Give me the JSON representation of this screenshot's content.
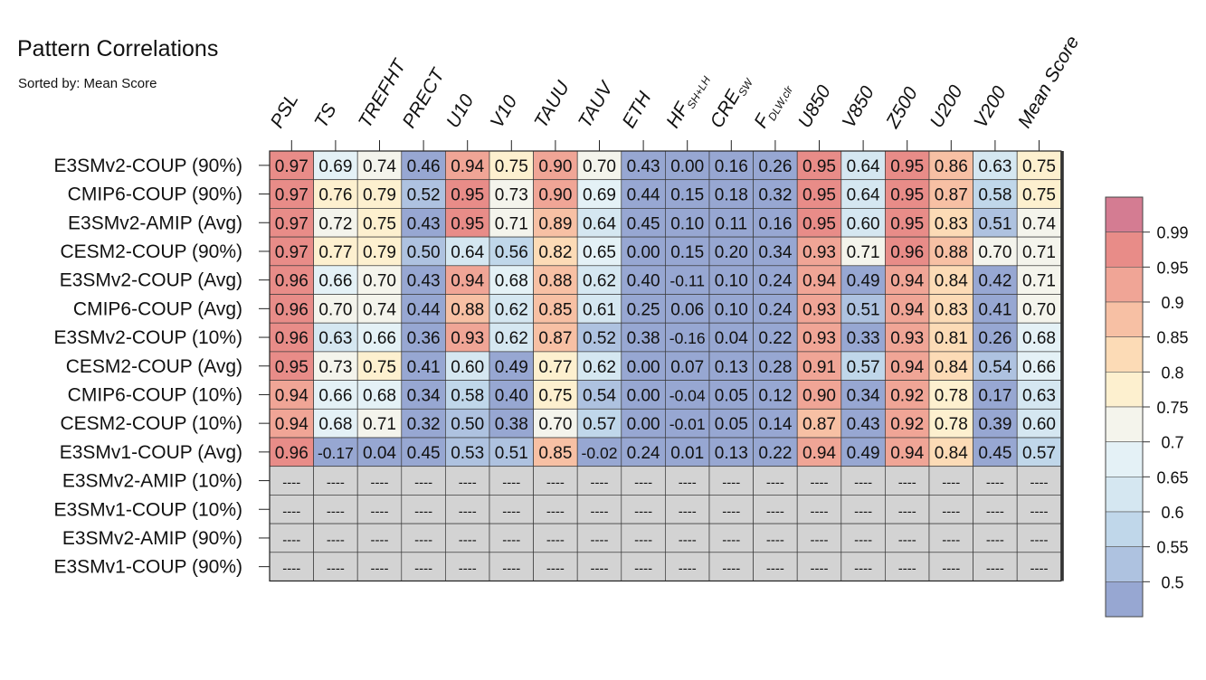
{
  "chart_data": {
    "type": "heatmap",
    "title": "Pattern Correlations",
    "subtitle": "Sorted by: Mean Score",
    "columns": [
      {
        "main": "PSL",
        "sub": ""
      },
      {
        "main": "TS",
        "sub": ""
      },
      {
        "main": "TREFHT",
        "sub": ""
      },
      {
        "main": "PRECT",
        "sub": ""
      },
      {
        "main": "U10",
        "sub": ""
      },
      {
        "main": "V10",
        "sub": ""
      },
      {
        "main": "TAUU",
        "sub": ""
      },
      {
        "main": "TAUV",
        "sub": ""
      },
      {
        "main": "ETH",
        "sub": ""
      },
      {
        "main": "HF",
        "sub": "SH+LH"
      },
      {
        "main": "CRE",
        "sub": "SW"
      },
      {
        "main": "F",
        "sub": "DLW,clr"
      },
      {
        "main": "U850",
        "sub": ""
      },
      {
        "main": "V850",
        "sub": ""
      },
      {
        "main": "Z500",
        "sub": ""
      },
      {
        "main": "U200",
        "sub": ""
      },
      {
        "main": "V200",
        "sub": ""
      },
      {
        "main": "Mean Score",
        "sub": ""
      }
    ],
    "rows": [
      "E3SMv2-COUP (90%)",
      "CMIP6-COUP (90%)",
      "E3SMv2-AMIP (Avg)",
      "CESM2-COUP (90%)",
      "E3SMv2-COUP (Avg)",
      "CMIP6-COUP (Avg)",
      "E3SMv2-COUP (10%)",
      "CESM2-COUP (Avg)",
      "CMIP6-COUP (10%)",
      "CESM2-COUP (10%)",
      "E3SMv1-COUP (Avg)",
      "E3SMv2-AMIP (10%)",
      "E3SMv1-COUP (10%)",
      "E3SMv2-AMIP (90%)",
      "E3SMv1-COUP (90%)"
    ],
    "values": [
      [
        "0.97",
        "0.69",
        "0.74",
        "0.46",
        "0.94",
        "0.75",
        "0.90",
        "0.70",
        "0.43",
        "0.00",
        "0.16",
        "0.26",
        "0.95",
        "0.64",
        "0.95",
        "0.86",
        "0.63",
        "0.75"
      ],
      [
        "0.97",
        "0.76",
        "0.79",
        "0.52",
        "0.95",
        "0.73",
        "0.90",
        "0.69",
        "0.44",
        "0.15",
        "0.18",
        "0.32",
        "0.95",
        "0.64",
        "0.95",
        "0.87",
        "0.58",
        "0.75"
      ],
      [
        "0.97",
        "0.72",
        "0.75",
        "0.43",
        "0.95",
        "0.71",
        "0.89",
        "0.64",
        "0.45",
        "0.10",
        "0.11",
        "0.16",
        "0.95",
        "0.60",
        "0.95",
        "0.83",
        "0.51",
        "0.74"
      ],
      [
        "0.97",
        "0.77",
        "0.79",
        "0.50",
        "0.64",
        "0.56",
        "0.82",
        "0.65",
        "0.00",
        "0.15",
        "0.20",
        "0.34",
        "0.93",
        "0.71",
        "0.96",
        "0.88",
        "0.70",
        "0.71"
      ],
      [
        "0.96",
        "0.66",
        "0.70",
        "0.43",
        "0.94",
        "0.68",
        "0.88",
        "0.62",
        "0.40",
        "-0.11",
        "0.10",
        "0.24",
        "0.94",
        "0.49",
        "0.94",
        "0.84",
        "0.42",
        "0.71"
      ],
      [
        "0.96",
        "0.70",
        "0.74",
        "0.44",
        "0.88",
        "0.62",
        "0.85",
        "0.61",
        "0.25",
        "0.06",
        "0.10",
        "0.24",
        "0.93",
        "0.51",
        "0.94",
        "0.83",
        "0.41",
        "0.70"
      ],
      [
        "0.96",
        "0.63",
        "0.66",
        "0.36",
        "0.93",
        "0.62",
        "0.87",
        "0.52",
        "0.38",
        "-0.16",
        "0.04",
        "0.22",
        "0.93",
        "0.33",
        "0.93",
        "0.81",
        "0.26",
        "0.68"
      ],
      [
        "0.95",
        "0.73",
        "0.75",
        "0.41",
        "0.60",
        "0.49",
        "0.77",
        "0.62",
        "0.00",
        "0.07",
        "0.13",
        "0.28",
        "0.91",
        "0.57",
        "0.94",
        "0.84",
        "0.54",
        "0.66"
      ],
      [
        "0.94",
        "0.66",
        "0.68",
        "0.34",
        "0.58",
        "0.40",
        "0.75",
        "0.54",
        "0.00",
        "-0.04",
        "0.05",
        "0.12",
        "0.90",
        "0.34",
        "0.92",
        "0.78",
        "0.17",
        "0.63"
      ],
      [
        "0.94",
        "0.68",
        "0.71",
        "0.32",
        "0.50",
        "0.38",
        "0.70",
        "0.57",
        "0.00",
        "-0.01",
        "0.05",
        "0.14",
        "0.87",
        "0.43",
        "0.92",
        "0.78",
        "0.39",
        "0.60"
      ],
      [
        "0.96",
        "-0.17",
        "0.04",
        "0.45",
        "0.53",
        "0.51",
        "0.85",
        "-0.02",
        "0.24",
        "0.01",
        "0.13",
        "0.22",
        "0.94",
        "0.49",
        "0.94",
        "0.84",
        "0.45",
        "0.57"
      ],
      [
        "----",
        "----",
        "----",
        "----",
        "----",
        "----",
        "----",
        "----",
        "----",
        "----",
        "----",
        "----",
        "----",
        "----",
        "----",
        "----",
        "----",
        "----"
      ],
      [
        "----",
        "----",
        "----",
        "----",
        "----",
        "----",
        "----",
        "----",
        "----",
        "----",
        "----",
        "----",
        "----",
        "----",
        "----",
        "----",
        "----",
        "----"
      ],
      [
        "----",
        "----",
        "----",
        "----",
        "----",
        "----",
        "----",
        "----",
        "----",
        "----",
        "----",
        "----",
        "----",
        "----",
        "----",
        "----",
        "----",
        "----"
      ],
      [
        "----",
        "----",
        "----",
        "----",
        "----",
        "----",
        "----",
        "----",
        "----",
        "----",
        "----",
        "----",
        "----",
        "----",
        "----",
        "----",
        "----",
        "----"
      ]
    ],
    "missing_color": "#d3d3d3",
    "colorbar": {
      "tick_labels": [
        "0.99",
        "0.95",
        "0.9",
        "0.85",
        "0.8",
        "0.75",
        "0.7",
        "0.65",
        "0.6",
        "0.55",
        "0.5"
      ],
      "thresholds": [
        0.5,
        0.55,
        0.6,
        0.65,
        0.7,
        0.75,
        0.8,
        0.85,
        0.9,
        0.95,
        0.99
      ],
      "colors_low_to_high": [
        "#97a7d2",
        "#aec2e0",
        "#c0d7ea",
        "#d5e7f1",
        "#e4f1f6",
        "#f4f4ec",
        "#fdf0cf",
        "#fcdbb6",
        "#f7c0a4",
        "#f0a596",
        "#e88c88",
        "#d47c92"
      ]
    }
  }
}
